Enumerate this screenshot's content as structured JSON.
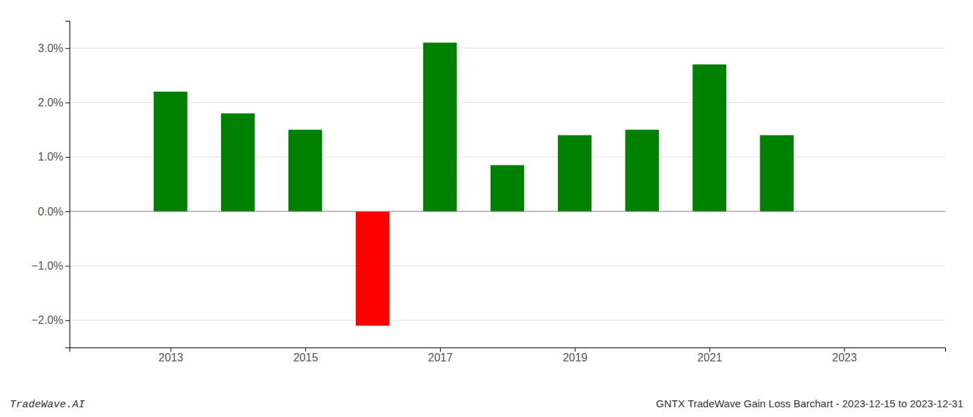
{
  "chart_data": {
    "type": "bar",
    "title": "GNTX TradeWave Gain Loss Barchart - 2023-12-15 to 2023-12-31",
    "annotations": [
      "TradeWave.AI"
    ],
    "x": [
      2013,
      2014,
      2015,
      2016,
      2017,
      2018,
      2019,
      2020,
      2021,
      2022
    ],
    "values": [
      0.022,
      0.018,
      0.015,
      -0.021,
      0.031,
      0.0085,
      0.014,
      0.015,
      0.027,
      0.014
    ],
    "colors": [
      "#008000",
      "#008000",
      "#008000",
      "#ff0000",
      "#008000",
      "#008000",
      "#008000",
      "#008000",
      "#008000",
      "#008000"
    ],
    "xlim": [
      2011.5,
      2024.5
    ],
    "xticks": [
      2013,
      2015,
      2017,
      2019,
      2021,
      2023
    ],
    "ylim": [
      -0.025,
      0.035
    ],
    "yticks": [
      {
        "value": -0.02,
        "label": "−2.0%"
      },
      {
        "value": -0.01,
        "label": "−1.0%"
      },
      {
        "value": 0.0,
        "label": "0.0%"
      },
      {
        "value": 0.01,
        "label": "1.0%"
      },
      {
        "value": 0.02,
        "label": "2.0%"
      },
      {
        "value": 0.03,
        "label": "3.0%"
      }
    ],
    "grid": true
  }
}
